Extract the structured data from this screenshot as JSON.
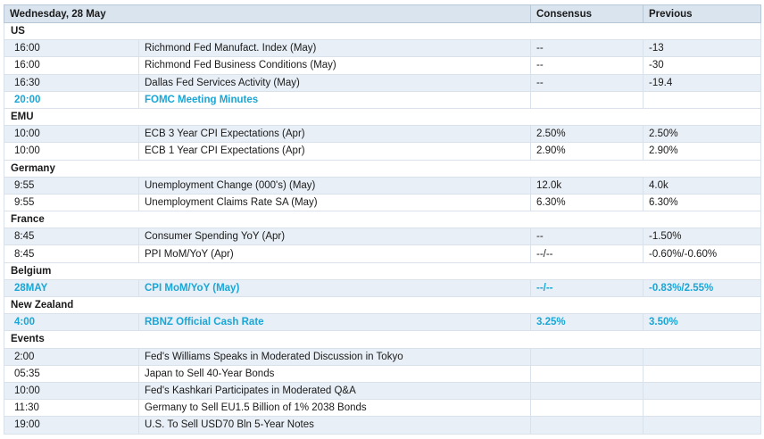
{
  "header": {
    "date": "Wednesday, 28 May",
    "consensus": "Consensus",
    "previous": "Previous"
  },
  "sections": [
    {
      "name": "US",
      "rows": [
        {
          "time": "16:00",
          "event": "Richmond Fed Manufact. Index (May)",
          "consensus": "--",
          "previous": "-13",
          "highlight": false
        },
        {
          "time": "16:00",
          "event": "Richmond Fed Business Conditions (May)",
          "consensus": "--",
          "previous": "-30",
          "highlight": false
        },
        {
          "time": "16:30",
          "event": "Dallas Fed Services Activity (May)",
          "consensus": "--",
          "previous": "-19.4",
          "highlight": false
        },
        {
          "time": "20:00",
          "event": "FOMC Meeting Minutes",
          "consensus": "",
          "previous": "",
          "highlight": true
        }
      ]
    },
    {
      "name": "EMU",
      "rows": [
        {
          "time": "10:00",
          "event": "ECB 3 Year CPI Expectations (Apr)",
          "consensus": "2.50%",
          "previous": "2.50%",
          "highlight": false
        },
        {
          "time": "10:00",
          "event": "ECB 1 Year CPI Expectations (Apr)",
          "consensus": "2.90%",
          "previous": "2.90%",
          "highlight": false
        }
      ]
    },
    {
      "name": "Germany",
      "rows": [
        {
          "time": "9:55",
          "event": "Unemployment Change (000's) (May)",
          "consensus": "12.0k",
          "previous": "4.0k",
          "highlight": false
        },
        {
          "time": "9:55",
          "event": "Unemployment Claims Rate SA (May)",
          "consensus": "6.30%",
          "previous": "6.30%",
          "highlight": false
        }
      ]
    },
    {
      "name": "France",
      "rows": [
        {
          "time": "8:45",
          "event": "Consumer Spending YoY (Apr)",
          "consensus": "--",
          "previous": "-1.50%",
          "highlight": false
        },
        {
          "time": "8:45",
          "event": "PPI MoM/YoY (Apr)",
          "consensus": "--/--",
          "previous": "-0.60%/-0.60%",
          "highlight": false
        }
      ]
    },
    {
      "name": "Belgium",
      "rows": [
        {
          "time": "28MAY",
          "event": "CPI MoM/YoY (May)",
          "consensus": "--/--",
          "previous": "-0.83%/2.55%",
          "highlight": true
        }
      ]
    },
    {
      "name": "New Zealand",
      "rows": [
        {
          "time": "4:00",
          "event": "RBNZ Official Cash Rate",
          "consensus": "3.25%",
          "previous": "3.50%",
          "highlight": true
        }
      ]
    },
    {
      "name": "Events",
      "rows": [
        {
          "time": "2:00",
          "event": "Fed's Williams Speaks in Moderated Discussion in Tokyo",
          "consensus": "",
          "previous": "",
          "highlight": false
        },
        {
          "time": "05:35",
          "event": "Japan to Sell 40-Year Bonds",
          "consensus": "",
          "previous": "",
          "highlight": false
        },
        {
          "time": "10:00",
          "event": "Fed's Kashkari Participates in Moderated Q&A",
          "consensus": "",
          "previous": "",
          "highlight": false
        },
        {
          "time": "11:30",
          "event": "Germany to Sell EU1.5 Billion of 1% 2038 Bonds",
          "consensus": "",
          "previous": "",
          "highlight": false
        },
        {
          "time": "19:00",
          "event": "U.S. To Sell USD70 Bln 5-Year Notes",
          "consensus": "",
          "previous": "",
          "highlight": false
        }
      ]
    }
  ],
  "colors": {
    "header_bg": "#d9e4ef",
    "row_shade": "#e8eff6",
    "highlight_text": "#1aa6d6"
  }
}
